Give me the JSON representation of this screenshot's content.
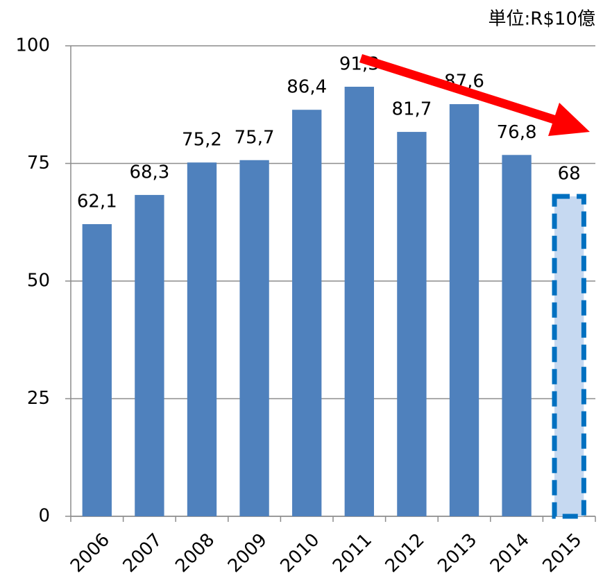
{
  "chart_data": {
    "type": "bar",
    "annotation": "単位:R$10億",
    "categories": [
      "2006",
      "2007",
      "2008",
      "2009",
      "2010",
      "2011",
      "2012",
      "2013",
      "2014",
      "2015"
    ],
    "values": [
      62.1,
      68.3,
      75.2,
      75.7,
      86.4,
      91.3,
      81.7,
      87.6,
      76.8,
      68
    ],
    "value_labels": [
      "62,1",
      "68,3",
      "75,2",
      "75,7",
      "86,4",
      "91,3",
      "81,7",
      "87,6",
      "76,8",
      "68"
    ],
    "colors": [
      "#4f81bd",
      "#4f81bd",
      "#4f81bd",
      "#4f81bd",
      "#4f81bd",
      "#4f81bd",
      "#4f81bd",
      "#4f81bd",
      "#4f81bd",
      "#c6d9f1"
    ],
    "outlines": [
      null,
      null,
      null,
      null,
      null,
      null,
      null,
      null,
      null,
      "#0070c0"
    ],
    "ylim": [
      0,
      100
    ],
    "yticks": [
      0,
      25,
      50,
      75,
      100
    ],
    "grid": true
  }
}
